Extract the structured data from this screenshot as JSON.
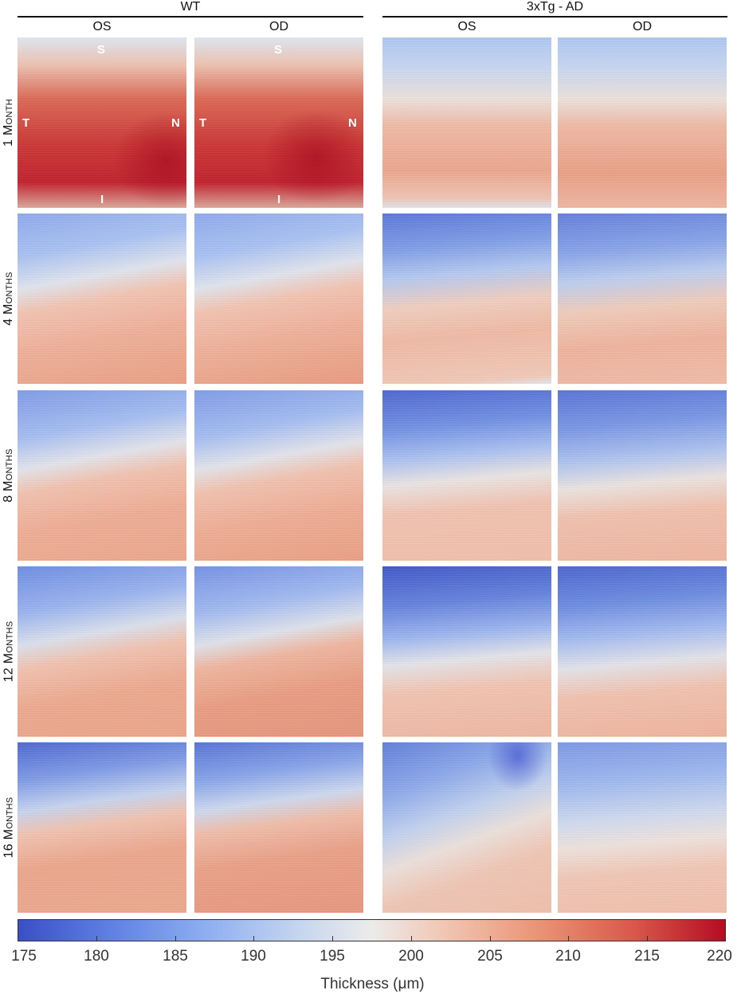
{
  "groups": [
    {
      "label": "WT",
      "columns": [
        "OS",
        "OD"
      ]
    },
    {
      "label": "3xTg - AD",
      "columns": [
        "OS",
        "OD"
      ]
    }
  ],
  "rows": [
    {
      "label": "1 Month"
    },
    {
      "label": "4 Months"
    },
    {
      "label": "8 Months"
    },
    {
      "label": "12 Months"
    },
    {
      "label": "16 Months"
    }
  ],
  "orientation": {
    "superior": "S",
    "inferior": "I",
    "temporal": "T",
    "nasal": "N"
  },
  "colorbar": {
    "label": "Thickness (μm)",
    "ticks": [
      "175",
      "180",
      "185",
      "190",
      "195",
      "200",
      "205",
      "210",
      "215",
      "220"
    ],
    "min": 175,
    "max": 220,
    "colors": [
      "#3a4fc6",
      "#ecebea",
      "#b40d22"
    ]
  },
  "panel_colors": {
    "wt_1m": [
      "#d7e1f0",
      "#e6a08c",
      "#d24e40",
      "#c8313a",
      "#bf2430"
    ],
    "ad_1m": [
      "#b7cdf2",
      "#cfd8ee",
      "#efc9b8",
      "#eaa58d",
      "#eda891"
    ],
    "mid": [
      "#6a86dc",
      "#9bb5ee",
      "#e8e2df",
      "#f0bba6",
      "#eaa187"
    ],
    "late_ad": [
      "#4a62cd",
      "#7d9ee8",
      "#dfe2ea",
      "#f0bda8",
      "#edae96"
    ]
  }
}
